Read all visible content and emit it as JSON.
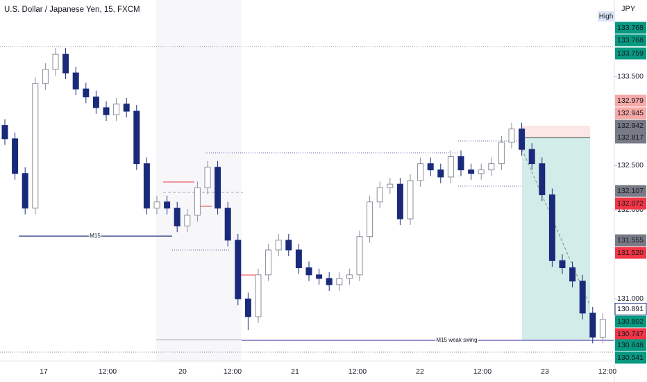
{
  "chart_data": {
    "type": "candlestick",
    "title": "U.S. Dollar / Japanese Yen, 15, FXCM",
    "currency": "JPY",
    "high_label": "High",
    "annotations": [
      "M15",
      "M15 weak swing"
    ],
    "categories": [
      "17",
      "12:00",
      "20",
      "12:00",
      "21",
      "12:00",
      "22",
      "12:00",
      "23",
      "12:00"
    ],
    "ylim": [
      130.3,
      134.36
    ],
    "yticks": [
      {
        "value": 133.5,
        "label": "133.500"
      },
      {
        "value": 132.5,
        "label": "132.500"
      },
      {
        "value": 132,
        "label": "132.000"
      },
      {
        "value": 131,
        "label": "131.000"
      }
    ],
    "up_color": "#ffffff",
    "down_color": "#1a2a7a",
    "open": [
      132.95,
      132.8,
      132.41,
      132.02,
      133.42,
      133.58,
      133.75,
      133.54,
      133.36,
      133.27,
      133.15,
      133.07,
      133.19,
      133.11,
      132.52,
      132.02,
      132.09,
      132.02,
      131.82,
      131.94,
      132.25,
      132.48,
      132.02,
      131.66,
      131.0,
      130.8,
      131.27,
      131.55,
      131.66,
      131.55,
      131.35,
      131.27,
      131.23,
      131.16,
      131.23,
      131.27,
      131.7,
      132.09,
      132.25,
      132.29,
      131.9,
      132.33,
      132.52,
      132.45,
      132.37,
      132.6,
      132.45,
      132.41,
      132.45,
      132.52,
      132.76,
      132.91,
      132.68,
      132.52,
      132.17,
      131.43,
      131.35,
      131.2,
      130.84,
      130.57
    ],
    "high": [
      133.02,
      132.87,
      132.48,
      133.49,
      133.65,
      133.82,
      133.82,
      133.61,
      133.43,
      133.34,
      133.22,
      133.26,
      133.26,
      133.18,
      132.59,
      132.16,
      132.16,
      132.09,
      132.01,
      132.32,
      132.55,
      132.55,
      132.09,
      131.73,
      131.07,
      131.34,
      131.62,
      131.73,
      131.73,
      131.62,
      131.42,
      131.34,
      131.3,
      131.3,
      131.34,
      131.77,
      132.16,
      132.32,
      132.36,
      132.36,
      132.4,
      132.59,
      132.59,
      132.52,
      132.67,
      132.67,
      132.52,
      132.52,
      132.59,
      132.83,
      132.98,
      132.98,
      132.75,
      132.59,
      132.24,
      131.5,
      131.42,
      131.27,
      130.91,
      130.84
    ],
    "low": [
      132.73,
      132.34,
      131.95,
      131.95,
      133.35,
      133.51,
      133.47,
      133.29,
      133.2,
      133.08,
      133.0,
      133.0,
      133.04,
      132.45,
      131.95,
      131.95,
      131.95,
      131.75,
      131.75,
      131.87,
      132.18,
      131.95,
      131.59,
      130.93,
      130.65,
      130.73,
      131.2,
      131.48,
      131.48,
      131.28,
      131.2,
      131.16,
      131.09,
      131.09,
      131.16,
      131.2,
      131.63,
      132.02,
      132.18,
      131.83,
      131.83,
      132.26,
      132.38,
      132.3,
      132.3,
      132.38,
      132.34,
      132.34,
      132.38,
      132.45,
      132.69,
      132.61,
      132.45,
      132.1,
      131.36,
      131.28,
      131.13,
      130.77,
      130.5,
      130.5
    ],
    "close": [
      132.8,
      132.41,
      132.02,
      133.42,
      133.58,
      133.75,
      133.54,
      133.36,
      133.27,
      133.15,
      133.07,
      133.19,
      133.11,
      132.52,
      132.02,
      132.09,
      132.02,
      131.82,
      131.94,
      132.25,
      132.48,
      132.02,
      131.66,
      131.0,
      130.8,
      131.27,
      131.55,
      131.66,
      131.55,
      131.35,
      131.27,
      131.23,
      131.16,
      131.23,
      131.27,
      131.7,
      132.09,
      132.25,
      132.29,
      131.9,
      132.33,
      132.52,
      132.45,
      132.37,
      132.6,
      132.45,
      132.41,
      132.45,
      132.52,
      132.76,
      132.91,
      132.68,
      132.52,
      132.17,
      131.43,
      131.35,
      131.2,
      130.84,
      130.57,
      130.77
    ],
    "price_tags": [
      {
        "price": 133.768,
        "color": "#089981"
      },
      {
        "price": 133.768,
        "color": "#089981"
      },
      {
        "price": 133.759,
        "color": "#089981"
      },
      {
        "price": 132.979,
        "color": "#f7a9a7"
      },
      {
        "price": 132.945,
        "color": "#f7a9a7"
      },
      {
        "price": 132.942,
        "color": "#787b86"
      },
      {
        "price": 132.817,
        "color": "#787b86"
      },
      {
        "price": 132.107,
        "color": "#787b86"
      },
      {
        "price": 132.072,
        "color": "#f23645"
      },
      {
        "price": 131.555,
        "color": "#787b86"
      },
      {
        "price": 131.52,
        "label": "131.520",
        "color": "#f23645"
      },
      {
        "price": 130.891,
        "color": "#ffffff"
      },
      {
        "price": 130.802,
        "color": "#089981"
      },
      {
        "price": 130.747,
        "color": "#f23645"
      },
      {
        "price": 130.648,
        "color": "#089981"
      },
      {
        "price": 130.541,
        "color": "#089981"
      }
    ]
  }
}
